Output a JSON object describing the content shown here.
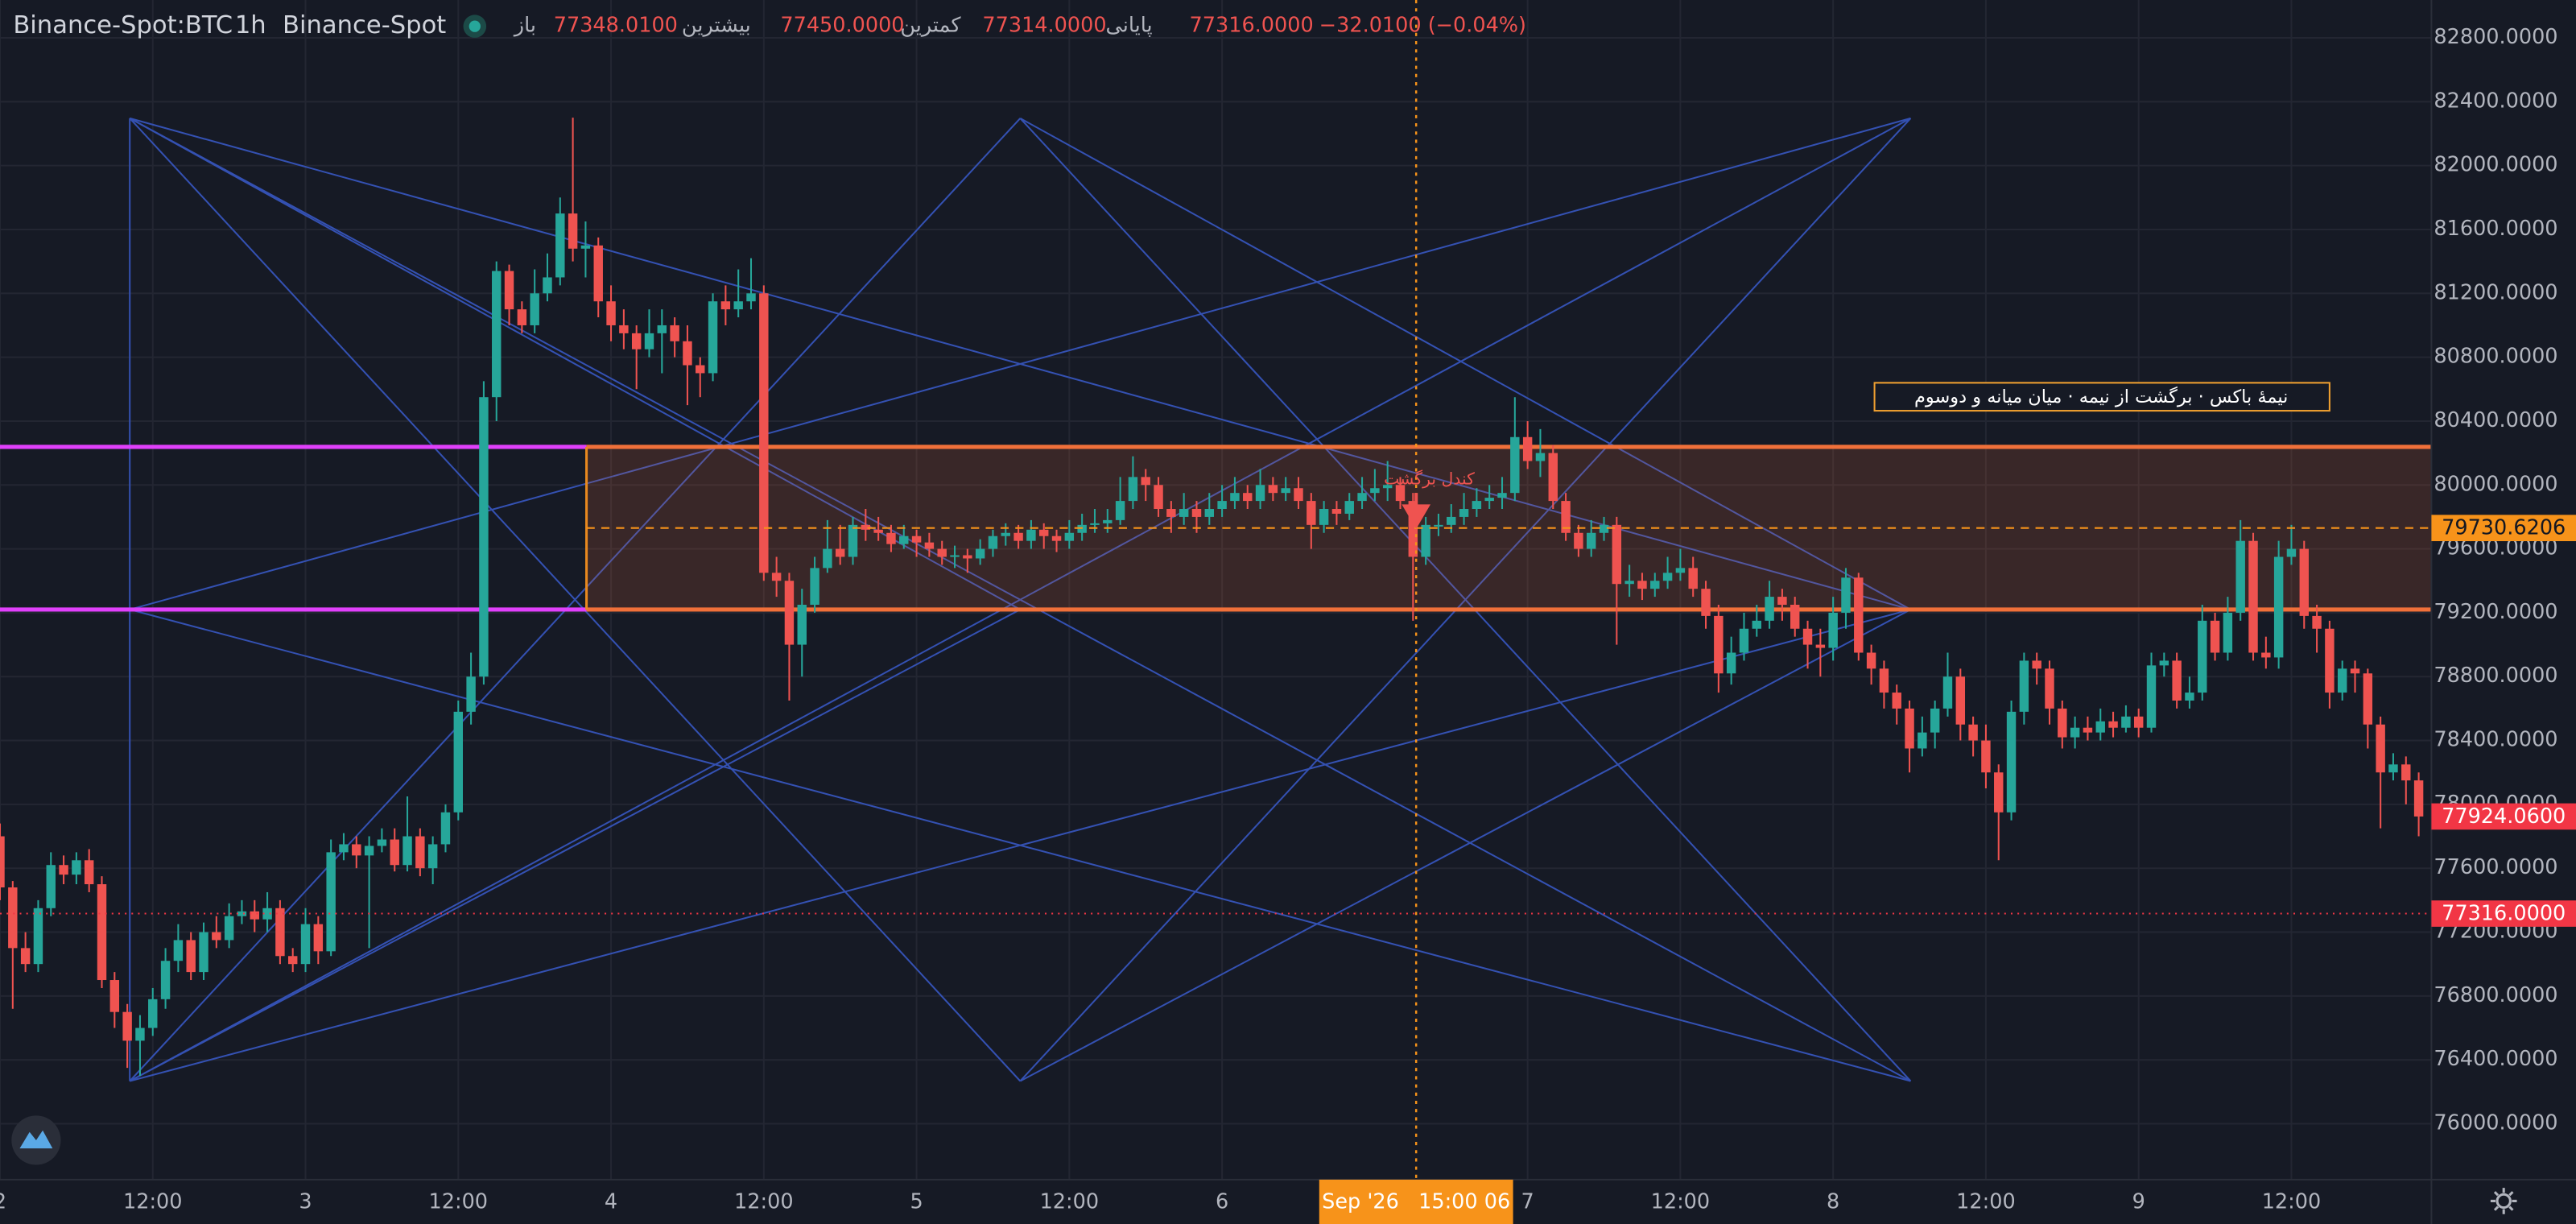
{
  "chart_data": {
    "type": "candlestick",
    "title": "Binance-Spot:BTC",
    "interval": "1h",
    "exchange": "Binance-Spot",
    "readout": [
      "باز",
      "77348.0100",
      "بیشترین",
      "77450.0000",
      "کمترین",
      "77314.0000",
      "پایانی",
      "77316.0000",
      "−32.0100 (−0.04%)"
    ],
    "up_color": "#26a69a",
    "down_color": "#ef5350",
    "grid": true,
    "xlim": [
      0,
      191
    ],
    "ylim": [
      75650,
      83037
    ],
    "xticks": [
      {
        "value": 0,
        "label": "2"
      },
      {
        "value": 12,
        "label": "12:00"
      },
      {
        "value": 24,
        "label": "3"
      },
      {
        "value": 36,
        "label": "12:00"
      },
      {
        "value": 48,
        "label": "4"
      },
      {
        "value": 60,
        "label": "12:00"
      },
      {
        "value": 72,
        "label": "5"
      },
      {
        "value": 84,
        "label": "12:00"
      },
      {
        "value": 96,
        "label": "6"
      },
      {
        "value": 120,
        "label": "7"
      },
      {
        "value": 132,
        "label": "12:00"
      },
      {
        "value": 144,
        "label": "8"
      },
      {
        "value": 156,
        "label": "12:00"
      },
      {
        "value": 168,
        "label": "9"
      },
      {
        "value": 180,
        "label": "12:00"
      }
    ],
    "yticks": [
      {
        "value": 76000,
        "label": "76000.0000"
      },
      {
        "value": 76400,
        "label": "76400.0000"
      },
      {
        "value": 76800,
        "label": "76800.0000"
      },
      {
        "value": 77200,
        "label": "77200.0000"
      },
      {
        "value": 77600,
        "label": "77600.0000"
      },
      {
        "value": 78000,
        "label": "78000.0000"
      },
      {
        "value": 78400,
        "label": "78400.0000"
      },
      {
        "value": 78800,
        "label": "78800.0000"
      },
      {
        "value": 79200,
        "label": "79200.0000"
      },
      {
        "value": 79600,
        "label": "79600.0000"
      },
      {
        "value": 80000,
        "label": "80000.0000"
      },
      {
        "value": 80400,
        "label": "80400.0000"
      },
      {
        "value": 80800,
        "label": "80800.0000"
      },
      {
        "value": 81200,
        "label": "81200.0000"
      },
      {
        "value": 81600,
        "label": "81600.0000"
      },
      {
        "value": 82000,
        "label": "82000.0000"
      },
      {
        "value": 82400,
        "label": "82400.0000"
      },
      {
        "value": 82800,
        "label": "82800.0000"
      }
    ],
    "price_labels": [
      {
        "value": 79730.6206,
        "label": "79730.6206",
        "color": "#f7931a",
        "line": "dashed"
      },
      {
        "value": 77924.06,
        "label": "77924.0600",
        "color": "#f23645",
        "line": "none"
      },
      {
        "value": 77316,
        "label": "77316.0000",
        "color": "#f23645",
        "line": "dotted"
      }
    ],
    "crosshair_label": "Sep '26   15:00 06",
    "box_label": "نیمهٔ باکس · برگشت از نیمه · میان میانه و دوسوم",
    "signal_label": "کندل برگشت",
    "open": [
      77800,
      77480,
      77100,
      77000,
      77350,
      77620,
      77560,
      77650,
      77500,
      76900,
      76700,
      76520,
      76600,
      76780,
      77020,
      77150,
      76950,
      77200,
      77150,
      77300,
      77330,
      77280,
      77350,
      77050,
      77000,
      77250,
      77080,
      77700,
      77750,
      77680,
      77740,
      77780,
      77620,
      77800,
      77600,
      77750,
      77950,
      78580,
      78800,
      80550,
      81340,
      81100,
      81000,
      81200,
      81300,
      81700,
      81480,
      81500,
      81150,
      81000,
      80950,
      80850,
      80950,
      81000,
      80900,
      80750,
      80700,
      81150,
      81100,
      81150,
      81200,
      79450,
      79400,
      79000,
      79250,
      79480,
      79600,
      79550,
      79750,
      79720,
      79700,
      79630,
      79680,
      79640,
      79600,
      79550,
      79560,
      79540,
      79600,
      79680,
      79700,
      79650,
      79720,
      79680,
      79650,
      79700,
      79750,
      79760,
      79780,
      79900,
      80050,
      80000,
      79850,
      79800,
      79850,
      79800,
      79850,
      79900,
      79950,
      79900,
      80000,
      79950,
      79980,
      79900,
      79750,
      79850,
      79820,
      79900,
      79950,
      79980,
      80000,
      79900,
      79550,
      79750,
      79750,
      79800,
      79850,
      79900,
      79920,
      79950,
      80300,
      80150,
      80200,
      79900,
      79700,
      79600,
      79700,
      79750,
      79380,
      79400,
      79350,
      79400,
      79450,
      79480,
      79350,
      79180,
      78820,
      78950,
      79100,
      79150,
      79300,
      79250,
      79100,
      79000,
      78980,
      79200,
      79420,
      78950,
      78850,
      78700,
      78600,
      78350,
      78450,
      78600,
      78800,
      78500,
      78400,
      78200,
      77950,
      78580,
      78900,
      78850,
      78600,
      78420,
      78480,
      78450,
      78520,
      78480,
      78550,
      78480,
      78870,
      78900,
      78650,
      78700,
      79150,
      78950,
      79200,
      79650,
      78950,
      78920,
      79550,
      79600,
      79180,
      79100,
      78700,
      78850,
      78820,
      78500,
      78200,
      78250,
      78150
    ],
    "high": [
      77880,
      77520,
      77200,
      77400,
      77700,
      77680,
      77700,
      77720,
      77550,
      76950,
      76750,
      76680,
      76850,
      77100,
      77250,
      77200,
      77260,
      77300,
      77380,
      77400,
      77400,
      77450,
      77400,
      77100,
      77350,
      77300,
      77780,
      77820,
      77800,
      77800,
      77850,
      77850,
      78050,
      77850,
      77800,
      78000,
      78650,
      78950,
      80650,
      81400,
      81380,
      81150,
      81350,
      81450,
      81800,
      82300,
      81650,
      81550,
      81250,
      81100,
      81000,
      81100,
      81100,
      81050,
      81000,
      80800,
      81200,
      81250,
      81350,
      81420,
      81250,
      79550,
      79450,
      79350,
      79550,
      79780,
      79750,
      79800,
      79850,
      79800,
      79750,
      79750,
      79720,
      79700,
      79650,
      79620,
      79600,
      79660,
      79720,
      79760,
      79750,
      79780,
      79760,
      79720,
      79780,
      79820,
      79850,
      79850,
      80050,
      80180,
      80100,
      80050,
      79900,
      79950,
      79900,
      79950,
      80000,
      80050,
      80000,
      80100,
      80050,
      80050,
      80050,
      79950,
      79900,
      79900,
      79950,
      80050,
      80100,
      80150,
      80050,
      79950,
      79800,
      79820,
      79880,
      79950,
      79980,
      80000,
      80050,
      80550,
      80400,
      80350,
      80250,
      79950,
      79750,
      79780,
      79800,
      79800,
      79500,
      79450,
      79450,
      79550,
      79600,
      79550,
      79400,
      79250,
      79050,
      79200,
      79250,
      79400,
      79350,
      79300,
      79150,
      79100,
      79300,
      79480,
      79450,
      79000,
      78900,
      78750,
      78650,
      78550,
      78650,
      78950,
      78850,
      78550,
      78500,
      78250,
      78650,
      78950,
      78950,
      78900,
      78650,
      78550,
      78550,
      78600,
      78580,
      78620,
      78600,
      78950,
      78950,
      78950,
      78800,
      79250,
      79200,
      79300,
      79780,
      79700,
      79050,
      79650,
      79750,
      79650,
      79250,
      79150,
      78900,
      78900,
      78850,
      78550,
      78320,
      78300,
      78200
    ],
    "low": [
      77400,
      76720,
      76950,
      76950,
      77300,
      77500,
      77500,
      77450,
      76850,
      76600,
      76350,
      76300,
      76550,
      76720,
      76950,
      76900,
      76900,
      77100,
      77100,
      77250,
      77200,
      77200,
      77000,
      76950,
      76950,
      77000,
      77050,
      77650,
      77600,
      77100,
      77700,
      77580,
      77580,
      77550,
      77500,
      77700,
      77900,
      78500,
      78750,
      80400,
      81000,
      80950,
      80950,
      81150,
      81250,
      81400,
      81300,
      81050,
      80900,
      80850,
      80600,
      80800,
      80700,
      80800,
      80500,
      80550,
      80650,
      81000,
      81050,
      81100,
      79400,
      79300,
      78650,
      78800,
      79200,
      79450,
      79500,
      79500,
      79650,
      79650,
      79580,
      79600,
      79550,
      79550,
      79500,
      79480,
      79450,
      79500,
      79550,
      79620,
      79600,
      79600,
      79600,
      79580,
      79600,
      79650,
      79700,
      79700,
      79750,
      79850,
      79900,
      79800,
      79700,
      79750,
      79700,
      79750,
      79800,
      79850,
      79850,
      79850,
      79900,
      79900,
      79850,
      79600,
      79700,
      79750,
      79780,
      79850,
      79900,
      79900,
      79850,
      79150,
      79500,
      79680,
      79700,
      79750,
      79800,
      79850,
      79850,
      79900,
      80100,
      80050,
      79850,
      79650,
      79550,
      79550,
      79650,
      79000,
      79300,
      79280,
      79300,
      79350,
      79400,
      79300,
      79100,
      78700,
      78750,
      78900,
      79050,
      79100,
      79150,
      79050,
      78850,
      78800,
      78900,
      79100,
      78900,
      78750,
      78600,
      78500,
      78200,
      78300,
      78350,
      78550,
      78400,
      78300,
      78100,
      77650,
      77900,
      78500,
      78750,
      78500,
      78350,
      78350,
      78400,
      78400,
      78420,
      78450,
      78420,
      78450,
      78800,
      78600,
      78600,
      78650,
      78900,
      78900,
      79150,
      78900,
      78850,
      78850,
      79500,
      79100,
      78950,
      78600,
      78650,
      78700,
      78350,
      77850,
      78150,
      78000,
      77800
    ],
    "close": [
      77480,
      77100,
      77000,
      77350,
      77620,
      77560,
      77650,
      77500,
      76900,
      76700,
      76520,
      76600,
      76780,
      77020,
      77150,
      76950,
      77200,
      77150,
      77300,
      77330,
      77280,
      77350,
      77050,
      77000,
      77250,
      77080,
      77700,
      77750,
      77680,
      77740,
      77780,
      77620,
      77800,
      77600,
      77750,
      77950,
      78580,
      78800,
      80550,
      81340,
      81100,
      81000,
      81200,
      81300,
      81700,
      81480,
      81500,
      81150,
      81000,
      80950,
      80850,
      80950,
      81000,
      80900,
      80750,
      80700,
      81150,
      81100,
      81150,
      81200,
      79450,
      79400,
      79000,
      79250,
      79480,
      79600,
      79550,
      79750,
      79720,
      79700,
      79630,
      79680,
      79640,
      79600,
      79550,
      79560,
      79540,
      79600,
      79680,
      79700,
      79650,
      79720,
      79680,
      79650,
      79700,
      79750,
      79760,
      79780,
      79900,
      80050,
      80000,
      79850,
      79800,
      79850,
      79800,
      79850,
      79900,
      79950,
      79900,
      80000,
      79950,
      79980,
      79900,
      79750,
      79850,
      79820,
      79900,
      79950,
      79980,
      80000,
      79900,
      79550,
      79750,
      79750,
      79800,
      79850,
      79900,
      79920,
      79950,
      80300,
      80150,
      80200,
      79900,
      79700,
      79600,
      79700,
      79750,
      79380,
      79400,
      79350,
      79400,
      79450,
      79480,
      79350,
      79180,
      78820,
      78950,
      79100,
      79150,
      79300,
      79250,
      79100,
      79000,
      78980,
      79200,
      79420,
      78950,
      78850,
      78700,
      78600,
      78350,
      78450,
      78600,
      78800,
      78500,
      78400,
      78200,
      77950,
      78580,
      78900,
      78850,
      78600,
      78420,
      78480,
      78450,
      78520,
      78480,
      78550,
      78480,
      78870,
      78900,
      78650,
      78700,
      79150,
      78950,
      79200,
      79650,
      78950,
      78920,
      79550,
      79600,
      79180,
      79100,
      78700,
      78850,
      78820,
      78500,
      78200,
      78250,
      78150,
      77924.06
    ]
  }
}
